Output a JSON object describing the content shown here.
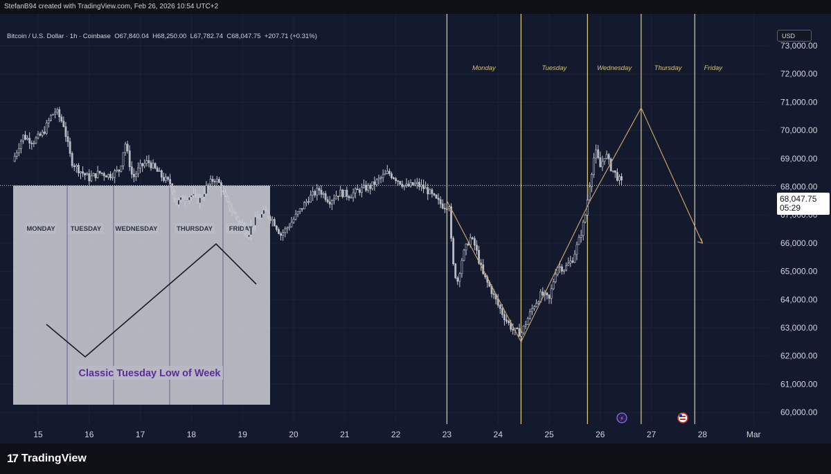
{
  "header": {
    "credit": "StefanB94 created with TradingView.com, Feb 26, 2026 10:54 UTC+2",
    "symbol": "Bitcoin / U.S. Dollar · 1h · Coinbase",
    "open": "O67,840.04",
    "high": "H68,250.00",
    "low": "L67,782.74",
    "close": "C68,047.75",
    "change": "+207.71 (+0.31%)"
  },
  "currency_button": "USD",
  "last_price": {
    "value": "68,047.75",
    "countdown": "05:29"
  },
  "brand": {
    "name": "TradingView"
  },
  "colors": {
    "background": "#131a2e",
    "candle_body": "#b2b5be",
    "projection": "#c8a26a",
    "day_line": "#d8c27a",
    "example_panel": "#c9cbd3",
    "example_divider": "#7a6a9e",
    "example_text": "#5b2e98"
  },
  "chart_data": {
    "type": "candlestick",
    "x_ticks": [
      "15",
      "16",
      "17",
      "18",
      "19",
      "20",
      "21",
      "22",
      "23",
      "24",
      "25",
      "26",
      "27",
      "28",
      "Mar"
    ],
    "y_ticks": [
      "60,000.00",
      "61,000.00",
      "62,000.00",
      "63,000.00",
      "64,000.00",
      "65,000.00",
      "66,000.00",
      "67,000.00",
      "68,000.00",
      "69,000.00",
      "70,000.00",
      "71,000.00",
      "72,000.00",
      "73,000.00"
    ],
    "ylim": [
      59600,
      73800
    ],
    "last_price": 68047.75,
    "price_path": [
      [
        14.5,
        68900
      ],
      [
        14.7,
        69800
      ],
      [
        14.9,
        69600
      ],
      [
        15.1,
        69900
      ],
      [
        15.25,
        70500
      ],
      [
        15.35,
        70700
      ],
      [
        15.5,
        70200
      ],
      [
        15.65,
        68900
      ],
      [
        15.8,
        68600
      ],
      [
        16.0,
        68300
      ],
      [
        16.2,
        68500
      ],
      [
        16.4,
        68400
      ],
      [
        16.6,
        68600
      ],
      [
        16.7,
        69600
      ],
      [
        16.85,
        68300
      ],
      [
        17.0,
        68700
      ],
      [
        17.15,
        68900
      ],
      [
        17.3,
        68600
      ],
      [
        17.45,
        68300
      ],
      [
        17.6,
        68100
      ],
      [
        17.7,
        67400
      ],
      [
        17.85,
        67600
      ],
      [
        18.0,
        67700
      ],
      [
        18.15,
        67500
      ],
      [
        18.3,
        68000
      ],
      [
        18.45,
        68300
      ],
      [
        18.55,
        68100
      ],
      [
        18.7,
        67400
      ],
      [
        18.85,
        67000
      ],
      [
        19.0,
        66600
      ],
      [
        19.1,
        66300
      ],
      [
        19.2,
        66700
      ],
      [
        19.3,
        66900
      ],
      [
        19.45,
        67100
      ],
      [
        19.6,
        66800
      ],
      [
        19.75,
        66300
      ],
      [
        19.9,
        66600
      ],
      [
        20.1,
        67100
      ],
      [
        20.3,
        67600
      ],
      [
        20.5,
        67900
      ],
      [
        20.7,
        67500
      ],
      [
        20.9,
        67800
      ],
      [
        21.1,
        67700
      ],
      [
        21.3,
        67900
      ],
      [
        21.5,
        68000
      ],
      [
        21.7,
        68300
      ],
      [
        21.85,
        68500
      ],
      [
        22.0,
        68300
      ],
      [
        22.2,
        68000
      ],
      [
        22.4,
        68100
      ],
      [
        22.6,
        67900
      ],
      [
        22.8,
        67500
      ],
      [
        22.95,
        67300
      ],
      [
        23.05,
        67400
      ],
      [
        23.1,
        65400
      ],
      [
        23.2,
        64600
      ],
      [
        23.3,
        65500
      ],
      [
        23.45,
        66200
      ],
      [
        23.55,
        65900
      ],
      [
        23.7,
        64900
      ],
      [
        23.85,
        64400
      ],
      [
        24.0,
        63800
      ],
      [
        24.15,
        63300
      ],
      [
        24.3,
        62900
      ],
      [
        24.45,
        62800
      ],
      [
        24.55,
        63200
      ],
      [
        24.7,
        63800
      ],
      [
        24.85,
        64200
      ],
      [
        25.0,
        64000
      ],
      [
        25.15,
        65200
      ],
      [
        25.3,
        65100
      ],
      [
        25.45,
        65400
      ],
      [
        25.6,
        66200
      ],
      [
        25.7,
        66900
      ],
      [
        25.8,
        68200
      ],
      [
        25.9,
        69300
      ],
      [
        26.0,
        68700
      ],
      [
        26.1,
        69200
      ],
      [
        26.2,
        68700
      ],
      [
        26.35,
        68300
      ],
      [
        26.45,
        68047
      ]
    ],
    "projection": [
      [
        23.0,
        67500
      ],
      [
        24.45,
        62500
      ],
      [
        25.8,
        67500
      ],
      [
        26.8,
        70800
      ],
      [
        28.0,
        66000
      ]
    ],
    "day_lines": [
      23.0,
      24.45,
      25.75,
      26.8,
      27.85
    ],
    "day_labels": [
      "Monday",
      "Tuesday",
      "Wednesday",
      "Thursday",
      "Friday"
    ],
    "events": [
      "electric-event-icon",
      "us-flag-icon"
    ],
    "example": {
      "day_labels": [
        "MONDAY",
        "TUESDAY",
        "WEDNESDAY",
        "THURSDAY",
        "FRIDAY"
      ],
      "caption": "Classic Tuesday Low of Week"
    }
  }
}
